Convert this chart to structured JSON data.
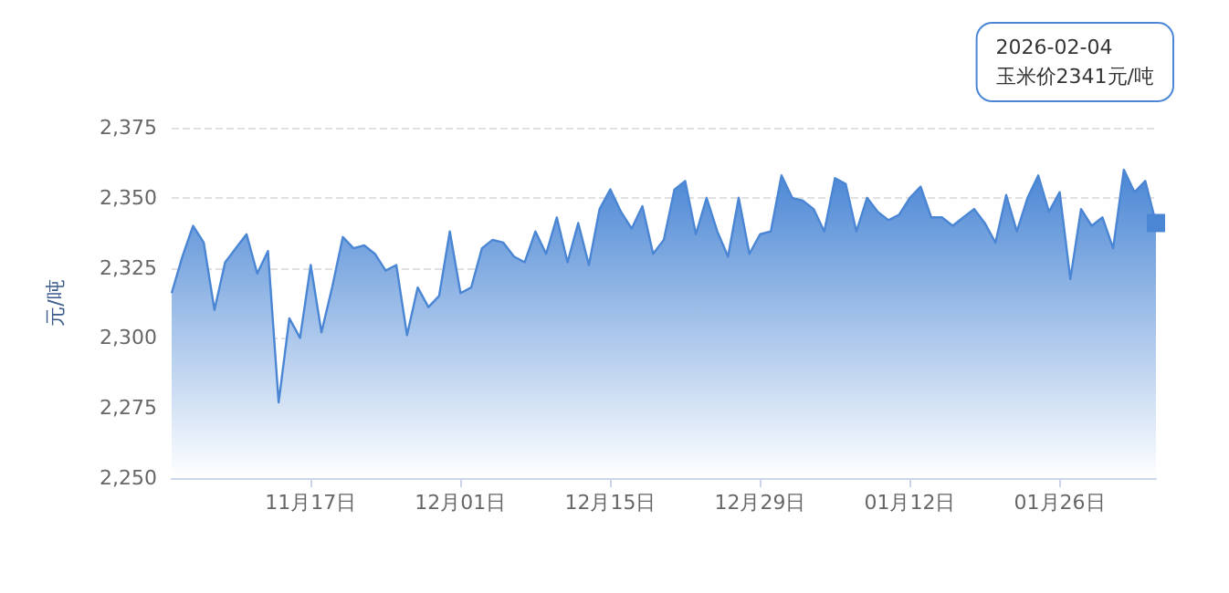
{
  "chart_data": {
    "type": "area",
    "ylabel": "元/吨",
    "x": [
      "2025-11-04",
      "2025-11-05",
      "2025-11-06",
      "2025-11-07",
      "2025-11-08",
      "2025-11-09",
      "2025-11-10",
      "2025-11-11",
      "2025-11-12",
      "2025-11-13",
      "2025-11-14",
      "2025-11-15",
      "2025-11-16",
      "2025-11-17",
      "2025-11-18",
      "2025-11-19",
      "2025-11-20",
      "2025-11-21",
      "2025-11-22",
      "2025-11-23",
      "2025-11-24",
      "2025-11-25",
      "2025-11-26",
      "2025-11-27",
      "2025-11-28",
      "2025-11-29",
      "2025-11-30",
      "2025-12-01",
      "2025-12-02",
      "2025-12-03",
      "2025-12-04",
      "2025-12-05",
      "2025-12-06",
      "2025-12-07",
      "2025-12-08",
      "2025-12-09",
      "2025-12-10",
      "2025-12-11",
      "2025-12-12",
      "2025-12-13",
      "2025-12-14",
      "2025-12-15",
      "2025-12-16",
      "2025-12-17",
      "2025-12-18",
      "2025-12-19",
      "2025-12-20",
      "2025-12-21",
      "2025-12-22",
      "2025-12-23",
      "2025-12-24",
      "2025-12-25",
      "2025-12-26",
      "2025-12-27",
      "2025-12-28",
      "2025-12-29",
      "2025-12-30",
      "2025-12-31",
      "2026-01-01",
      "2026-01-02",
      "2026-01-03",
      "2026-01-04",
      "2026-01-05",
      "2026-01-06",
      "2026-01-07",
      "2026-01-08",
      "2026-01-09",
      "2026-01-10",
      "2026-01-11",
      "2026-01-12",
      "2026-01-13",
      "2026-01-14",
      "2026-01-15",
      "2026-01-16",
      "2026-01-17",
      "2026-01-18",
      "2026-01-19",
      "2026-01-20",
      "2026-01-21",
      "2026-01-22",
      "2026-01-23",
      "2026-01-24",
      "2026-01-25",
      "2026-01-26",
      "2026-01-27",
      "2026-01-28",
      "2026-01-29",
      "2026-01-30",
      "2026-01-31",
      "2026-02-01",
      "2026-02-02",
      "2026-02-03",
      "2026-02-04"
    ],
    "series": [
      {
        "color": "#4a86d4",
        "values": [
          2316,
          2329,
          2340,
          2334,
          2310,
          2327,
          2332,
          2337,
          2323,
          2331,
          2277,
          2307,
          2300,
          2326,
          2302,
          2318,
          2336,
          2332,
          2333,
          2330,
          2324,
          2326,
          2301,
          2318,
          2311,
          2315,
          2338,
          2316,
          2318,
          2332,
          2335,
          2334,
          2329,
          2327,
          2338,
          2330,
          2343,
          2327,
          2341,
          2326,
          2346,
          2353,
          2345,
          2339,
          2347,
          2330,
          2335,
          2353,
          2356,
          2337,
          2350,
          2338,
          2329,
          2350,
          2330,
          2337,
          2338,
          2358,
          2350,
          2349,
          2346,
          2338,
          2357,
          2355,
          2338,
          2350,
          2345,
          2342,
          2344,
          2350,
          2354,
          2343,
          2343,
          2340,
          2343,
          2346,
          2341,
          2334,
          2351,
          2338,
          2350,
          2358,
          2345,
          2352,
          2321,
          2346,
          2340,
          2343,
          2332,
          2360,
          2352,
          2356,
          2341
        ]
      }
    ],
    "xlim": [
      "2025-11-04",
      "2026-02-04"
    ],
    "xticks": [
      {
        "value": "2025-11-17",
        "label": "11月17日"
      },
      {
        "value": "2025-12-01",
        "label": "12月01日"
      },
      {
        "value": "2025-12-15",
        "label": "12月15日"
      },
      {
        "value": "2025-12-29",
        "label": "12月29日"
      },
      {
        "value": "2026-01-12",
        "label": "01月12日"
      },
      {
        "value": "2026-01-26",
        "label": "01月26日"
      }
    ],
    "ylim": [
      2250,
      2375
    ],
    "yticks": [
      {
        "value": 2250,
        "label": "2,250"
      },
      {
        "value": 2275,
        "label": "2,275"
      },
      {
        "value": 2300,
        "label": "2,300"
      },
      {
        "value": 2325,
        "label": "2,325"
      },
      {
        "value": 2350,
        "label": "2,350"
      },
      {
        "value": 2375,
        "label": "2,375"
      }
    ],
    "grid": "y",
    "marker": "none",
    "annotations": [
      "2026-02-04\n玉米价2341元/吨"
    ]
  }
}
